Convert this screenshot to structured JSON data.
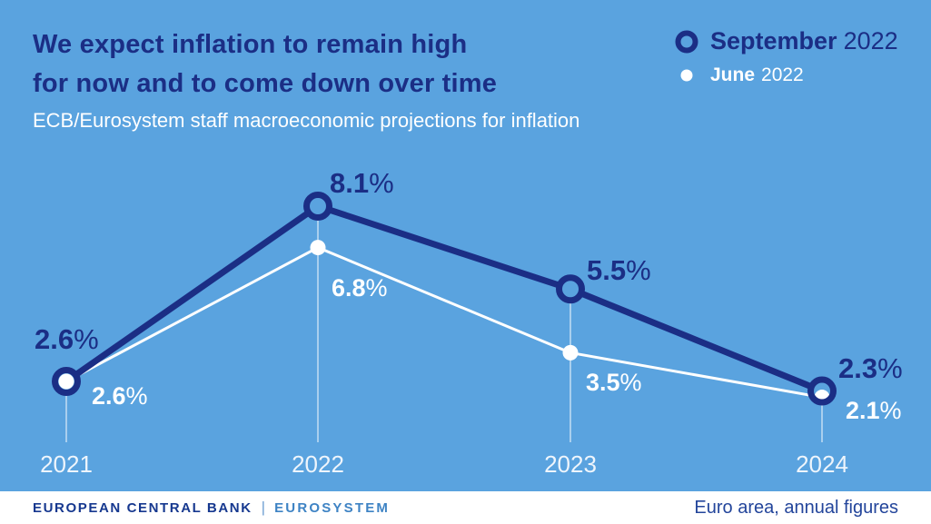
{
  "header": {
    "title_line1": "We expect inflation to remain high",
    "title_line2": "for now and to come down over time",
    "subtitle": "ECB/Eurosystem staff macroeconomic projections for inflation"
  },
  "legend": {
    "series1_label": "September",
    "series1_year": "2022",
    "series2_label": "June",
    "series2_year": "2022"
  },
  "chart_data": {
    "type": "line",
    "categories": [
      "2021",
      "2022",
      "2023",
      "2024"
    ],
    "unit": "%",
    "series": [
      {
        "name": "September 2022",
        "color": "#1b2e85",
        "marker": "ring",
        "values": [
          2.6,
          8.1,
          5.5,
          2.3
        ]
      },
      {
        "name": "June 2022",
        "color": "#ffffff",
        "marker": "dot",
        "values": [
          2.6,
          6.8,
          3.5,
          2.1
        ]
      }
    ],
    "ylim": [
      1.5,
      9.0
    ],
    "grid": "vertical-droplines",
    "legend_position": "top-right",
    "dropline_color": "rgba(255,255,255,0.6)"
  },
  "footer": {
    "brand": "EUROPEAN CENTRAL BANK",
    "brand_separator": "|",
    "brand_suffix": "EUROSYSTEM",
    "note": "Euro area, annual figures"
  },
  "colors": {
    "background": "#5aa3df",
    "navy": "#1b2e85",
    "white": "#ffffff",
    "eurosystem_blue": "#3e83c4"
  }
}
